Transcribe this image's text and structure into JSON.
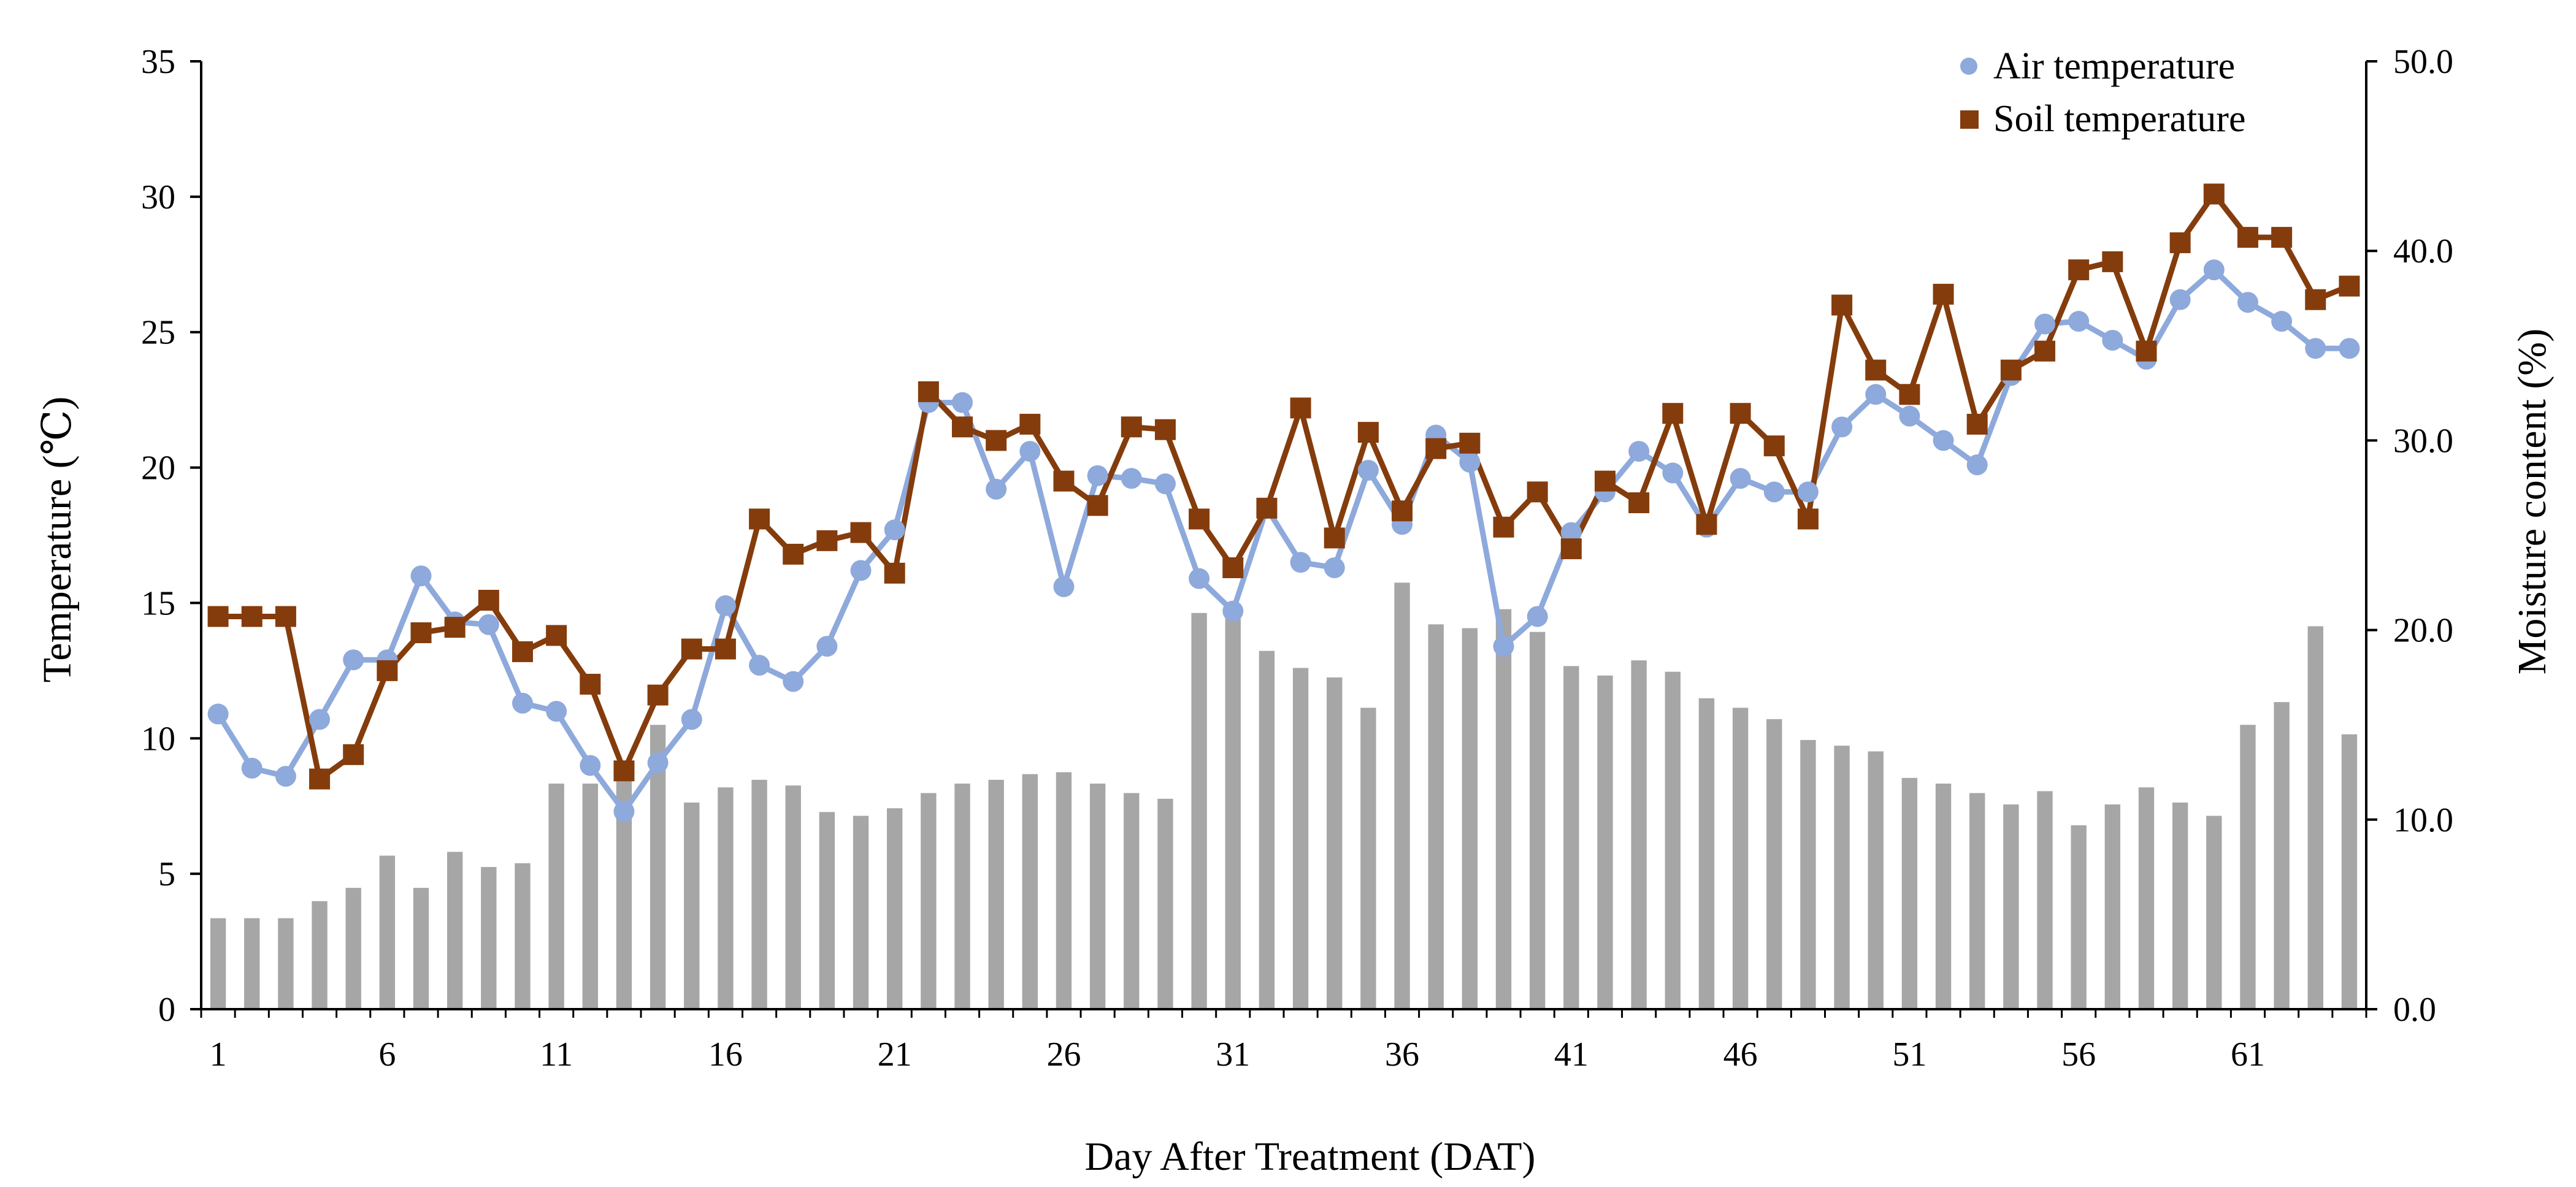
{
  "chart_data": {
    "type": "combo",
    "xlabel": "Day After Treatment (DAT)",
    "ylabel_left": "Temperature (℃)",
    "ylabel_right": "Moisture content (%)",
    "x_tick_labels": [
      "1",
      "6",
      "11",
      "16",
      "21",
      "26",
      "31",
      "36",
      "41",
      "46",
      "51",
      "56",
      "61"
    ],
    "x_tick_days": [
      1,
      6,
      11,
      16,
      21,
      26,
      31,
      36,
      41,
      46,
      51,
      56,
      61
    ],
    "ylim_left": [
      0,
      35
    ],
    "ylim_right": [
      0,
      50
    ],
    "y_left_ticks": [
      "0",
      "5",
      "10",
      "15",
      "20",
      "25",
      "30",
      "35"
    ],
    "y_right_ticks": [
      "0.0",
      "10.0",
      "20.0",
      "30.0",
      "40.0",
      "50.0"
    ],
    "days": [
      1,
      2,
      3,
      4,
      5,
      6,
      7,
      8,
      9,
      10,
      11,
      12,
      13,
      14,
      15,
      16,
      17,
      18,
      19,
      20,
      21,
      22,
      23,
      24,
      25,
      26,
      27,
      28,
      29,
      30,
      31,
      32,
      33,
      34,
      35,
      36,
      37,
      38,
      39,
      40,
      41,
      42,
      43,
      44,
      45,
      46,
      47,
      48,
      49,
      50,
      51,
      52,
      53,
      54,
      55,
      56,
      57,
      58,
      59,
      60,
      61,
      62,
      63,
      64
    ],
    "series": [
      {
        "name": "Air temperature",
        "axis": "left",
        "kind": "line",
        "color": "#8EA9DB",
        "marker": "circle",
        "values": [
          10.9,
          8.9,
          8.6,
          10.7,
          12.9,
          12.9,
          16.0,
          14.3,
          14.2,
          11.3,
          11.0,
          9.0,
          7.3,
          9.1,
          10.7,
          14.9,
          12.7,
          12.1,
          13.4,
          16.2,
          17.7,
          22.4,
          22.4,
          19.2,
          20.6,
          15.6,
          19.7,
          19.6,
          19.4,
          15.9,
          14.7,
          18.5,
          16.5,
          16.3,
          19.9,
          17.9,
          21.2,
          20.2,
          13.4,
          14.5,
          17.6,
          19.1,
          20.6,
          19.8,
          17.8,
          19.6,
          19.1,
          19.1,
          21.5,
          22.7,
          21.9,
          21.0,
          20.1,
          23.4,
          25.3,
          25.4,
          24.7,
          24.0,
          26.2,
          27.3,
          26.1,
          25.4,
          24.4,
          24.4
        ]
      },
      {
        "name": "Soil temperature",
        "axis": "left",
        "kind": "line",
        "color": "#843C0C",
        "marker": "square",
        "values": [
          14.5,
          14.5,
          14.5,
          8.5,
          9.4,
          12.5,
          13.9,
          14.1,
          15.1,
          13.2,
          13.8,
          12.0,
          8.8,
          11.6,
          13.3,
          13.3,
          18.1,
          16.8,
          17.3,
          17.6,
          16.1,
          22.8,
          21.5,
          21.0,
          21.6,
          19.5,
          18.6,
          21.5,
          21.4,
          18.1,
          16.3,
          18.5,
          22.2,
          17.4,
          21.3,
          18.4,
          20.7,
          20.9,
          17.8,
          19.1,
          17.0,
          19.5,
          18.7,
          22.0,
          17.9,
          22.0,
          20.8,
          18.1,
          26.0,
          23.6,
          22.7,
          26.4,
          21.6,
          23.6,
          24.3,
          27.3,
          27.6,
          24.3,
          28.3,
          30.1,
          28.5,
          28.5,
          26.2,
          26.7
        ]
      },
      {
        "name": "Moisture content",
        "axis": "right",
        "kind": "bar",
        "color": "#A6A6A6",
        "values": [
          4.8,
          4.8,
          4.8,
          5.7,
          6.4,
          8.1,
          6.4,
          8.3,
          7.5,
          7.7,
          11.9,
          11.9,
          12.5,
          15.0,
          10.9,
          11.7,
          12.1,
          11.8,
          10.4,
          10.2,
          10.6,
          11.4,
          11.9,
          12.1,
          12.4,
          12.5,
          11.9,
          11.4,
          11.1,
          20.9,
          20.9,
          18.9,
          18.0,
          17.5,
          15.9,
          22.5,
          20.3,
          20.1,
          21.1,
          19.9,
          18.1,
          17.6,
          18.4,
          17.8,
          16.4,
          15.9,
          15.3,
          14.2,
          13.9,
          13.6,
          12.2,
          11.9,
          11.4,
          10.8,
          11.5,
          9.7,
          10.8,
          11.7,
          10.9,
          10.2,
          15.0,
          16.2,
          20.2,
          14.5
        ]
      }
    ],
    "legend": {
      "position": "top-right",
      "entries": [
        "Air temperature",
        "Soil temperature"
      ]
    },
    "grid": false
  }
}
